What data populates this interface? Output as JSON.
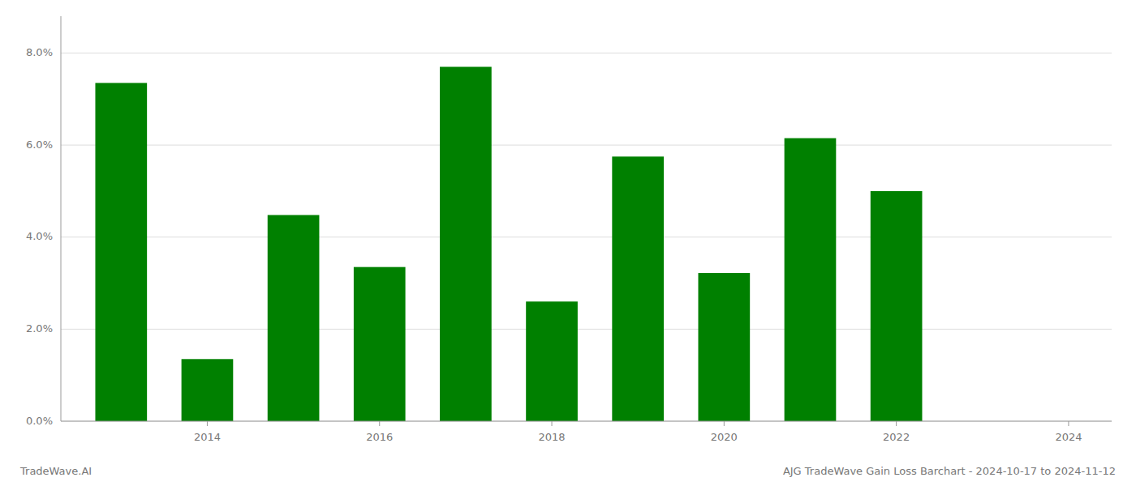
{
  "chart_data": {
    "type": "bar",
    "title": "AJG TradeWave Gain Loss Barchart - 2024-10-17 to 2024-11-12",
    "annotations": [
      "TradeWave.AI"
    ],
    "x": [
      2013,
      2014,
      2015,
      2016,
      2017,
      2018,
      2019,
      2020,
      2021,
      2022,
      2023
    ],
    "values": [
      0.0735,
      0.0135,
      0.0448,
      0.0335,
      0.077,
      0.026,
      0.0575,
      0.0322,
      0.0615,
      0.05,
      0.0
    ],
    "color": "#008000",
    "xlim": [
      2012.3,
      2024.5
    ],
    "xticks": [
      2014,
      2016,
      2018,
      2020,
      2022,
      2024
    ],
    "ylim": [
      0.0,
      0.088
    ],
    "yticks": [
      {
        "value": 0.0,
        "label": "0.0%"
      },
      {
        "value": 0.02,
        "label": "2.0%"
      },
      {
        "value": 0.04,
        "label": "4.0%"
      },
      {
        "value": 0.06,
        "label": "6.0%"
      },
      {
        "value": 0.08,
        "label": "8.0%"
      }
    ],
    "grid": true
  }
}
